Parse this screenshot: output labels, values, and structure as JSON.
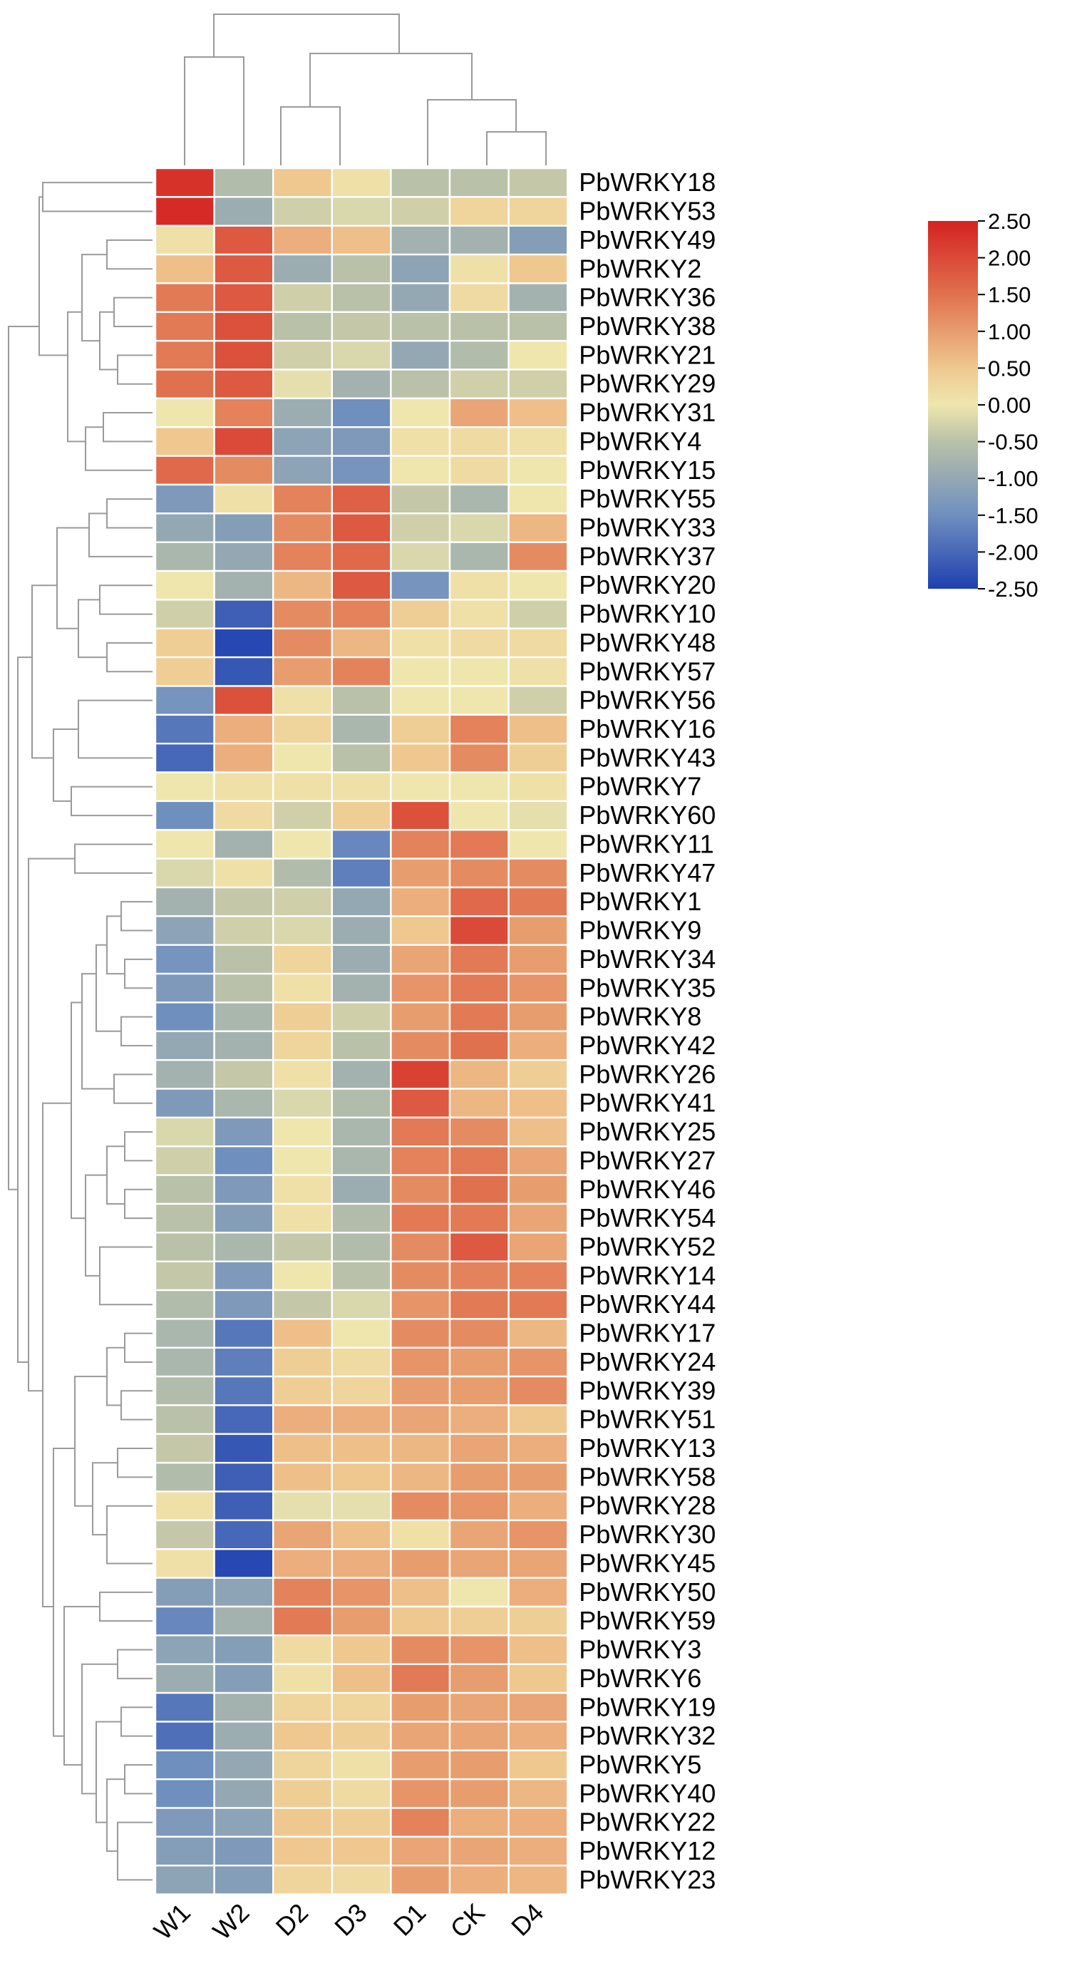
{
  "chart_data": {
    "type": "heatmap",
    "title": "",
    "columns": [
      "W1",
      "W2",
      "D2",
      "D3",
      "D1",
      "CK",
      "D4"
    ],
    "rows": [
      "PbWRKY18",
      "PbWRKY53",
      "PbWRKY49",
      "PbWRKY2",
      "PbWRKY36",
      "PbWRKY38",
      "PbWRKY21",
      "PbWRKY29",
      "PbWRKY31",
      "PbWRKY4",
      "PbWRKY15",
      "PbWRKY55",
      "PbWRKY33",
      "PbWRKY37",
      "PbWRKY20",
      "PbWRKY10",
      "PbWRKY48",
      "PbWRKY57",
      "PbWRKY56",
      "PbWRKY16",
      "PbWRKY43",
      "PbWRKY7",
      "PbWRKY60",
      "PbWRKY11",
      "PbWRKY47",
      "PbWRKY1",
      "PbWRKY9",
      "PbWRKY34",
      "PbWRKY35",
      "PbWRKY8",
      "PbWRKY42",
      "PbWRKY26",
      "PbWRKY41",
      "PbWRKY25",
      "PbWRKY27",
      "PbWRKY46",
      "PbWRKY54",
      "PbWRKY52",
      "PbWRKY14",
      "PbWRKY44",
      "PbWRKY17",
      "PbWRKY24",
      "PbWRKY39",
      "PbWRKY51",
      "PbWRKY13",
      "PbWRKY58",
      "PbWRKY28",
      "PbWRKY30",
      "PbWRKY45",
      "PbWRKY50",
      "PbWRKY59",
      "PbWRKY3",
      "PbWRKY6",
      "PbWRKY19",
      "PbWRKY32",
      "PbWRKY5",
      "PbWRKY40",
      "PbWRKY22",
      "PbWRKY12",
      "PbWRKY23"
    ],
    "values": [
      [
        2.3,
        -0.6,
        0.5,
        0.1,
        -0.5,
        -0.5,
        -0.4
      ],
      [
        2.4,
        -0.9,
        -0.3,
        -0.2,
        -0.3,
        0.3,
        0.3
      ],
      [
        0.1,
        1.8,
        0.8,
        0.6,
        -0.8,
        -0.8,
        -1.2
      ],
      [
        0.6,
        1.8,
        -0.9,
        -0.5,
        -1.1,
        0.1,
        0.5
      ],
      [
        1.4,
        1.8,
        -0.3,
        -0.5,
        -1.0,
        0.2,
        -0.8
      ],
      [
        1.4,
        1.9,
        -0.5,
        -0.4,
        -0.5,
        -0.5,
        -0.5
      ],
      [
        1.4,
        1.9,
        -0.3,
        -0.2,
        -1.0,
        -0.6,
        0.0
      ],
      [
        1.5,
        1.8,
        -0.1,
        -0.8,
        -0.5,
        -0.3,
        -0.3
      ],
      [
        0.0,
        1.3,
        -0.9,
        -1.5,
        0.0,
        0.9,
        0.6
      ],
      [
        0.5,
        2.0,
        -1.1,
        -1.3,
        0.1,
        0.2,
        0.1
      ],
      [
        1.6,
        1.2,
        -1.1,
        -1.4,
        0.0,
        0.2,
        0.0
      ],
      [
        -1.3,
        0.1,
        1.3,
        1.7,
        -0.4,
        -0.7,
        0.0
      ],
      [
        -1.0,
        -1.2,
        1.2,
        1.8,
        -0.3,
        -0.2,
        0.7
      ],
      [
        -0.7,
        -1.0,
        1.3,
        1.6,
        -0.2,
        -0.7,
        1.2
      ],
      [
        0.0,
        -0.8,
        0.7,
        1.8,
        -1.4,
        0.1,
        0.0
      ],
      [
        -0.3,
        -2.1,
        1.2,
        1.3,
        0.4,
        0.1,
        -0.3
      ],
      [
        0.4,
        -2.4,
        1.2,
        0.7,
        0.1,
        0.2,
        0.2
      ],
      [
        0.4,
        -2.2,
        1.0,
        1.3,
        0.0,
        0.0,
        0.1
      ],
      [
        -1.4,
        1.9,
        0.1,
        -0.5,
        0.0,
        0.0,
        -0.3
      ],
      [
        -1.8,
        0.8,
        0.3,
        -0.7,
        0.4,
        1.3,
        0.6
      ],
      [
        -2.0,
        0.8,
        0.0,
        -0.5,
        0.5,
        1.2,
        0.4
      ],
      [
        0.0,
        0.1,
        0.1,
        0.1,
        0.0,
        0.0,
        0.1
      ],
      [
        -1.5,
        0.2,
        -0.3,
        0.4,
        1.9,
        0.0,
        -0.1
      ],
      [
        0.0,
        -0.8,
        0.0,
        -1.6,
        1.3,
        1.4,
        0.0
      ],
      [
        -0.2,
        0.1,
        -0.6,
        -1.7,
        1.0,
        1.2,
        1.2
      ],
      [
        -0.8,
        -0.4,
        -0.3,
        -1.0,
        0.8,
        1.6,
        1.4
      ],
      [
        -1.1,
        -0.3,
        -0.2,
        -0.9,
        0.5,
        2.0,
        1.0
      ],
      [
        -1.4,
        -0.5,
        0.3,
        -0.9,
        0.9,
        1.4,
        1.0
      ],
      [
        -1.3,
        -0.5,
        0.1,
        -0.8,
        1.1,
        1.4,
        1.1
      ],
      [
        -1.5,
        -0.7,
        0.4,
        -0.3,
        1.0,
        1.4,
        1.0
      ],
      [
        -1.0,
        -0.8,
        0.3,
        -0.5,
        1.2,
        1.5,
        0.8
      ],
      [
        -0.8,
        -0.4,
        0.1,
        -0.8,
        2.1,
        0.7,
        0.4
      ],
      [
        -1.3,
        -0.7,
        -0.2,
        -0.6,
        1.8,
        0.7,
        0.6
      ],
      [
        -0.2,
        -1.3,
        0.0,
        -0.7,
        1.4,
        1.2,
        0.6
      ],
      [
        -0.3,
        -1.5,
        0.0,
        -0.7,
        1.3,
        1.4,
        0.9
      ],
      [
        -0.5,
        -1.3,
        0.1,
        -0.9,
        1.2,
        1.5,
        1.0
      ],
      [
        -0.5,
        -1.2,
        0.1,
        -0.6,
        1.4,
        1.4,
        0.9
      ],
      [
        -0.5,
        -0.7,
        -0.4,
        -0.6,
        1.2,
        1.8,
        0.9
      ],
      [
        -0.4,
        -1.3,
        0.0,
        -0.5,
        1.2,
        1.3,
        1.3
      ],
      [
        -0.6,
        -1.3,
        -0.4,
        -0.2,
        1.1,
        1.4,
        1.4
      ],
      [
        -0.7,
        -1.8,
        0.6,
        0.0,
        1.2,
        1.2,
        0.7
      ],
      [
        -0.7,
        -1.7,
        0.4,
        0.2,
        1.1,
        1.0,
        1.1
      ],
      [
        -0.6,
        -1.8,
        0.4,
        0.3,
        1.0,
        1.0,
        1.2
      ],
      [
        -0.5,
        -2.0,
        0.8,
        0.8,
        0.9,
        0.8,
        0.5
      ],
      [
        -0.4,
        -2.2,
        0.6,
        0.6,
        0.7,
        0.9,
        0.8
      ],
      [
        -0.6,
        -2.1,
        0.6,
        0.5,
        0.7,
        1.0,
        1.0
      ],
      [
        0.1,
        -2.1,
        -0.1,
        -0.1,
        1.2,
        1.1,
        0.8
      ],
      [
        -0.4,
        -2.0,
        0.9,
        0.6,
        0.1,
        0.9,
        1.1
      ],
      [
        0.1,
        -2.4,
        0.8,
        0.8,
        1.0,
        0.9,
        0.9
      ],
      [
        -1.2,
        -1.1,
        1.3,
        1.1,
        0.6,
        0.0,
        0.8
      ],
      [
        -1.6,
        -0.8,
        1.4,
        1.0,
        0.5,
        0.4,
        0.4
      ],
      [
        -1.1,
        -1.2,
        0.2,
        0.5,
        1.2,
        1.1,
        0.6
      ],
      [
        -0.9,
        -1.2,
        0.1,
        0.6,
        1.4,
        1.0,
        0.5
      ],
      [
        -1.8,
        -0.8,
        0.3,
        0.3,
        1.0,
        0.9,
        0.9
      ],
      [
        -1.9,
        -0.9,
        0.5,
        0.4,
        0.9,
        0.9,
        0.8
      ],
      [
        -1.5,
        -1.0,
        0.3,
        0.1,
        1.0,
        1.0,
        0.5
      ],
      [
        -1.5,
        -1.0,
        0.4,
        0.2,
        1.1,
        1.0,
        0.7
      ],
      [
        -1.3,
        -1.1,
        0.5,
        0.4,
        1.3,
        0.8,
        0.8
      ],
      [
        -1.2,
        -1.3,
        0.5,
        0.5,
        0.9,
        0.9,
        0.8
      ],
      [
        -1.1,
        -1.2,
        0.3,
        0.2,
        1.0,
        0.8,
        0.7
      ]
    ],
    "color_scale": {
      "min": -2.5,
      "max": 2.5,
      "stops": [
        {
          "value": -2.5,
          "color": "#1f3fb0"
        },
        {
          "value": -1.5,
          "color": "#6f8fbf"
        },
        {
          "value": -0.5,
          "color": "#b9c1a8"
        },
        {
          "value": 0.0,
          "color": "#efe6ae"
        },
        {
          "value": 0.5,
          "color": "#efc88f"
        },
        {
          "value": 1.5,
          "color": "#e0714e"
        },
        {
          "value": 2.5,
          "color": "#d52221"
        }
      ]
    },
    "legend": {
      "position": "top-right",
      "ticks": [
        "2.50",
        "2.00",
        "1.50",
        "1.00",
        "0.50",
        "0.00",
        "-0.50",
        "-1.00",
        "-1.50",
        "-2.00",
        "-2.50"
      ]
    },
    "column_dendrogram": {
      "merges": [
        [
          5,
          6
        ],
        [
          4,
          "CK+D4"
        ],
        [
          2,
          3
        ],
        [
          "D2+D3",
          "D1+CK+D4"
        ],
        [
          0,
          1
        ],
        [
          "W1+W2",
          "rest"
        ]
      ]
    },
    "row_dendrogram": "hierarchical clustering of rows, drawn on the left"
  }
}
